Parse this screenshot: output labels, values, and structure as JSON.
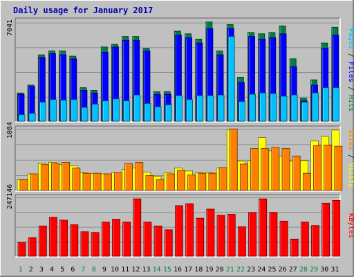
{
  "chart_data": [
    {
      "type": "bar",
      "title": "Daily usage for January 2017",
      "categories": [
        "1",
        "2",
        "3",
        "4",
        "5",
        "6",
        "7",
        "8",
        "9",
        "10",
        "11",
        "12",
        "13",
        "14",
        "15",
        "16",
        "17",
        "18",
        "19",
        "20",
        "21",
        "22",
        "23",
        "24",
        "25",
        "26",
        "27",
        "28",
        "29",
        "30",
        "31"
      ],
      "weekend_days": [
        "1",
        "7",
        "8",
        "14",
        "15",
        "21",
        "22",
        "28",
        "29"
      ],
      "ylabel_parts": [
        "Pages",
        "Files",
        "Hits"
      ],
      "ytick": "7041",
      "ylim": [
        0,
        7900
      ],
      "series": [
        {
          "name": "Hits",
          "color": "#008040",
          "values": [
            2200,
            2800,
            5100,
            5400,
            5400,
            5000,
            2600,
            2400,
            5700,
            5900,
            6500,
            6500,
            5600,
            2300,
            2300,
            6900,
            6700,
            6300,
            7600,
            5400,
            7400,
            3400,
            6800,
            6700,
            6800,
            7300,
            4800,
            1800,
            3200,
            6000,
            7200
          ]
        },
        {
          "name": "Files",
          "color": "#0000ff",
          "values": [
            2100,
            2700,
            4900,
            5200,
            5100,
            4800,
            2400,
            2200,
            5300,
            5700,
            6200,
            6200,
            5400,
            2100,
            2100,
            6600,
            6400,
            6000,
            7100,
            5100,
            7100,
            3000,
            6500,
            6300,
            6400,
            6700,
            4200,
            1600,
            2800,
            5600,
            6600
          ]
        },
        {
          "name": "Pages",
          "color": "#00c0ff",
          "values": [
            550,
            650,
            1500,
            1700,
            1650,
            1700,
            1100,
            1350,
            1600,
            1750,
            1600,
            2050,
            1400,
            1150,
            1300,
            2000,
            1700,
            2000,
            2000,
            2050,
            6500,
            1550,
            2100,
            2200,
            2150,
            1950,
            2050,
            1500,
            2200,
            2600,
            2600
          ]
        }
      ]
    },
    {
      "type": "bar",
      "categories": [
        "1",
        "2",
        "3",
        "4",
        "5",
        "6",
        "7",
        "8",
        "9",
        "10",
        "11",
        "12",
        "13",
        "14",
        "15",
        "16",
        "17",
        "18",
        "19",
        "20",
        "21",
        "22",
        "23",
        "24",
        "25",
        "26",
        "27",
        "28",
        "29",
        "30",
        "31"
      ],
      "ylabel_parts": [
        "Sites",
        "Visits"
      ],
      "ytick": "1084",
      "ylim": [
        0,
        1130
      ],
      "series": [
        {
          "name": "Visits",
          "color": "#ffff00",
          "values": [
            200,
            300,
            480,
            500,
            460,
            440,
            320,
            310,
            300,
            320,
            380,
            400,
            330,
            260,
            320,
            400,
            350,
            320,
            320,
            400,
            1070,
            520,
            530,
            930,
            700,
            600,
            520,
            530,
            870,
            950,
            1060
          ]
        },
        {
          "name": "Sites",
          "color": "#ff8000",
          "values": [
            200,
            300,
            460,
            480,
            500,
            400,
            310,
            310,
            300,
            320,
            480,
            500,
            270,
            200,
            300,
            360,
            280,
            310,
            310,
            410,
            1080,
            470,
            740,
            740,
            760,
            740,
            610,
            310,
            790,
            800,
            780
          ]
        }
      ]
    },
    {
      "type": "bar",
      "categories": [
        "1",
        "2",
        "3",
        "4",
        "5",
        "6",
        "7",
        "8",
        "9",
        "10",
        "11",
        "12",
        "13",
        "14",
        "15",
        "16",
        "17",
        "18",
        "19",
        "20",
        "21",
        "22",
        "23",
        "24",
        "25",
        "26",
        "27",
        "28",
        "29",
        "30",
        "31"
      ],
      "ylabel_parts": [
        "KBytes"
      ],
      "ytick": "247146",
      "ylim": [
        0,
        322000
      ],
      "series": [
        {
          "name": "KBytes",
          "color": "#ff0000",
          "values": [
            75000,
            100000,
            160000,
            205000,
            190000,
            166000,
            130000,
            126000,
            180000,
            195000,
            180000,
            300000,
            180000,
            160000,
            140000,
            265000,
            275000,
            200000,
            247000,
            215000,
            220000,
            156000,
            230000,
            300000,
            230000,
            185000,
            92000,
            180000,
            162000,
            278000,
            292000
          ]
        }
      ]
    }
  ]
}
